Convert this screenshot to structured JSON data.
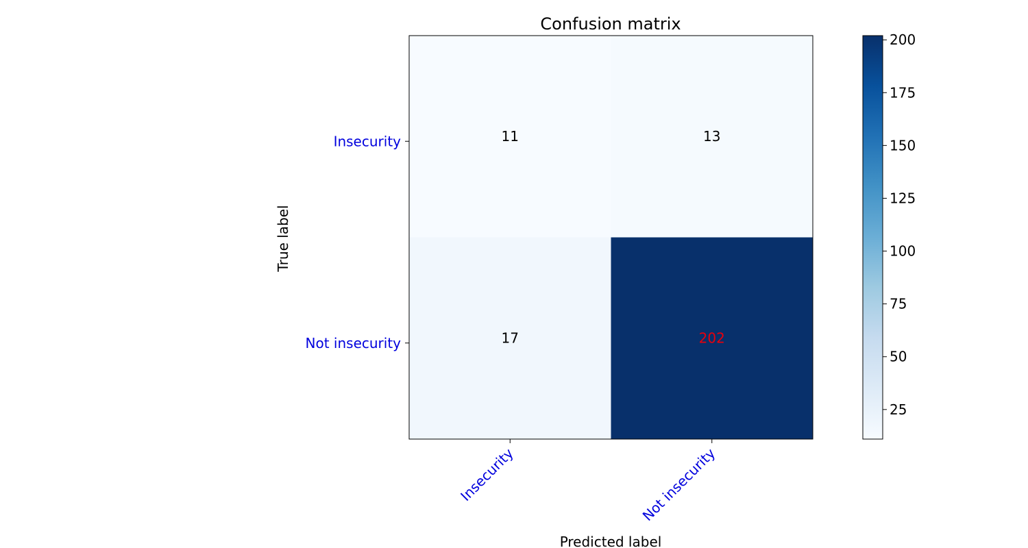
{
  "chart_data": {
    "type": "heatmap",
    "title": "Confusion matrix",
    "xlabel": "Predicted label",
    "ylabel": "True label",
    "x_categories": [
      "Insecurity",
      "Not insecurity"
    ],
    "y_categories": [
      "Insecurity",
      "Not insecurity"
    ],
    "values": [
      [
        11,
        13
      ],
      [
        17,
        202
      ]
    ],
    "colorbar": {
      "range": [
        11,
        202
      ],
      "ticks": [
        "25",
        "50",
        "75",
        "100",
        "125",
        "150",
        "175",
        "200"
      ],
      "colormap": "Blues"
    },
    "colors": {
      "tick_label": "#0000dd",
      "cell_text": "#000000",
      "highlight_text": "#e8000b",
      "low": "#f7fbff",
      "high": "#08306b"
    },
    "highlight_cell": [
      1,
      1
    ]
  }
}
